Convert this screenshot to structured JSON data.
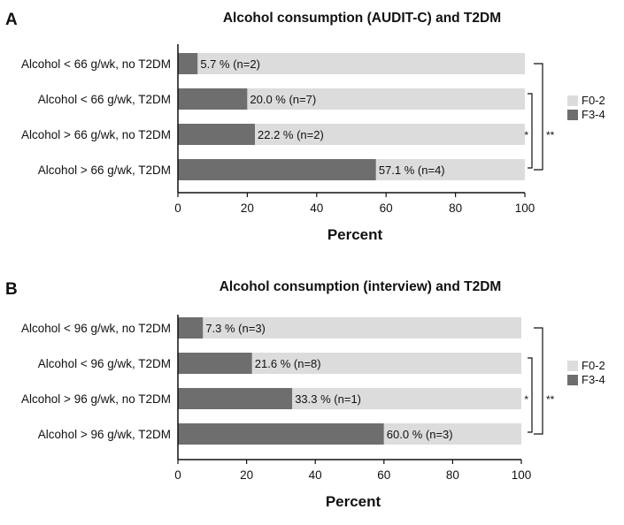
{
  "chart_data": [
    {
      "panel": "A",
      "type": "bar",
      "orientation": "horizontal",
      "stacked": true,
      "title": "Alcohol consumption (AUDIT-C) and T2DM",
      "xlabel": "Percent",
      "ylabel": "",
      "xlim": [
        0,
        100
      ],
      "xticks": [
        "0",
        "20",
        "40",
        "60",
        "80",
        "100"
      ],
      "categories": [
        "Alcohol < 66 g/wk, no T2DM",
        "Alcohol < 66 g/wk, T2DM",
        "Alcohol > 66 g/wk, no T2DM",
        "Alcohol > 66 g/wk, T2DM"
      ],
      "series": [
        {
          "name": "F3-4",
          "color": "#6e6e6e",
          "values": [
            5.7,
            20.0,
            22.2,
            57.1
          ]
        },
        {
          "name": "F0-2",
          "color": "#dcdcdc",
          "values": [
            94.3,
            80.0,
            77.8,
            42.9
          ]
        }
      ],
      "data_labels": [
        "5.7 % (n=2)",
        "20.0 % (n=7)",
        "22.2 % (n=2)",
        "57.1 % (n=4)"
      ],
      "legend": [
        "F0-2",
        "F3-4"
      ],
      "legend_position": "right",
      "significance": [
        "*",
        "**"
      ]
    },
    {
      "panel": "B",
      "type": "bar",
      "orientation": "horizontal",
      "stacked": true,
      "title": "Alcohol consumption (interview) and T2DM",
      "xlabel": "Percent",
      "ylabel": "",
      "xlim": [
        0,
        100
      ],
      "xticks": [
        "0",
        "20",
        "40",
        "60",
        "80",
        "100"
      ],
      "categories": [
        "Alcohol < 96 g/wk, no T2DM",
        "Alcohol < 96 g/wk, T2DM",
        "Alcohol > 96 g/wk, no T2DM",
        "Alcohol > 96 g/wk, T2DM"
      ],
      "series": [
        {
          "name": "F3-4",
          "color": "#6e6e6e",
          "values": [
            7.3,
            21.6,
            33.3,
            60.0
          ]
        },
        {
          "name": "F0-2",
          "color": "#dcdcdc",
          "values": [
            92.7,
            78.4,
            66.7,
            40.0
          ]
        }
      ],
      "data_labels": [
        "7.3 % (n=3)",
        "21.6 % (n=8)",
        "33.3 % (n=1)",
        "60.0 % (n=3)"
      ],
      "legend": [
        "F0-2",
        "F3-4"
      ],
      "legend_position": "right",
      "significance": [
        "*",
        "**"
      ]
    }
  ]
}
